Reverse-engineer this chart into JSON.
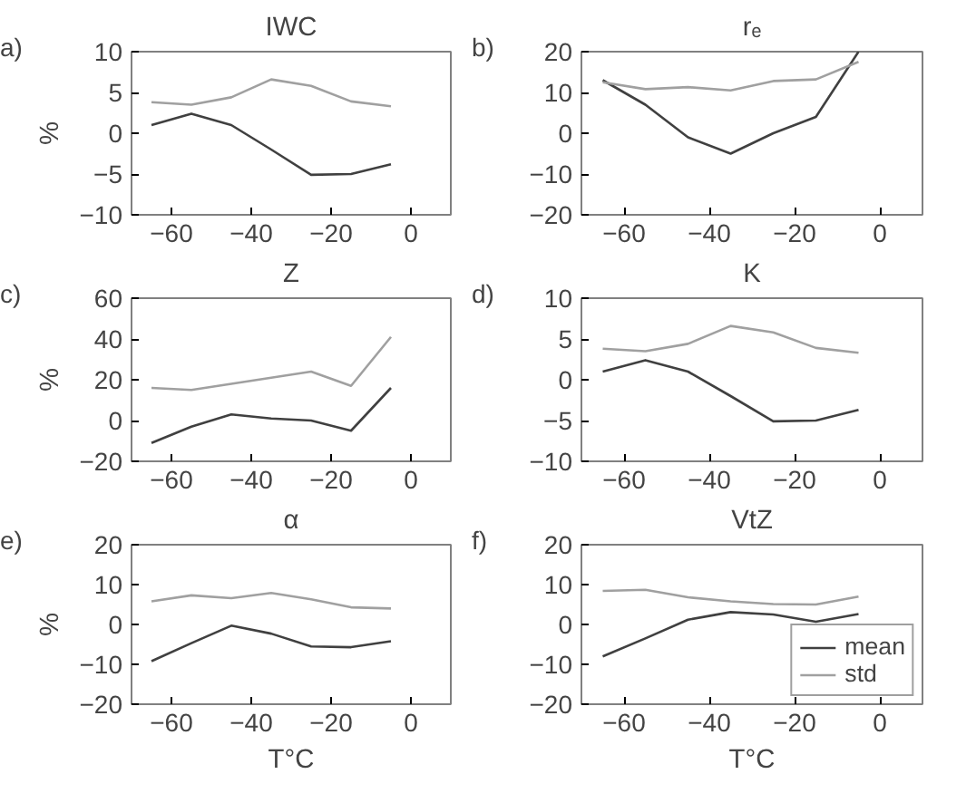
{
  "chart_data": [
    {
      "type": "line",
      "title": "IWC",
      "ylabel": "%",
      "annotations": [
        "a)"
      ],
      "x": [
        -65,
        -55,
        -45,
        -35,
        -25,
        -15,
        -5
      ],
      "xlim": [
        -70,
        10
      ],
      "xticks": [
        -60,
        -40,
        -20,
        0
      ],
      "ylim": [
        -10,
        10
      ],
      "yticks": [
        -10,
        -5,
        0,
        5,
        10
      ],
      "series": [
        {
          "color": "#404040",
          "values": [
            1,
            2.4,
            1,
            -2,
            -5.1,
            -5,
            -3.8
          ]
        },
        {
          "color": "#a0a0a0",
          "values": [
            3.8,
            3.5,
            4.4,
            6.6,
            5.8,
            3.9,
            3.3
          ]
        }
      ]
    },
    {
      "type": "line",
      "title": "rₑ",
      "annotations": [
        "b)"
      ],
      "x": [
        -65,
        -55,
        -45,
        -35,
        -25,
        -15,
        -5
      ],
      "xlim": [
        -70,
        10
      ],
      "xticks": [
        -60,
        -40,
        -20,
        0
      ],
      "ylim": [
        -20,
        20
      ],
      "yticks": [
        -20,
        -10,
        0,
        10,
        20
      ],
      "series": [
        {
          "color": "#404040",
          "values": [
            13,
            7,
            -1,
            -5,
            0,
            4,
            20
          ]
        },
        {
          "color": "#a0a0a0",
          "values": [
            12.5,
            10.8,
            11.3,
            10.5,
            12.8,
            13.2,
            17.5
          ]
        }
      ]
    },
    {
      "type": "line",
      "title": "Z",
      "ylabel": "%",
      "annotations": [
        "c)"
      ],
      "x": [
        -65,
        -55,
        -45,
        -35,
        -25,
        -15,
        -5
      ],
      "xlim": [
        -70,
        10
      ],
      "xticks": [
        -60,
        -40,
        -20,
        0
      ],
      "ylim": [
        -20,
        60
      ],
      "yticks": [
        -20,
        0,
        20,
        40,
        60
      ],
      "series": [
        {
          "color": "#404040",
          "values": [
            -11,
            -3,
            3,
            1,
            0,
            -5,
            16
          ]
        },
        {
          "color": "#a0a0a0",
          "values": [
            16,
            15,
            18,
            21,
            24,
            17,
            41
          ]
        }
      ]
    },
    {
      "type": "line",
      "title": "K",
      "annotations": [
        "d)"
      ],
      "x": [
        -65,
        -55,
        -45,
        -35,
        -25,
        -15,
        -5
      ],
      "xlim": [
        -70,
        10
      ],
      "xticks": [
        -60,
        -40,
        -20,
        0
      ],
      "ylim": [
        -10,
        10
      ],
      "yticks": [
        -10,
        -5,
        0,
        5,
        10
      ],
      "series": [
        {
          "color": "#404040",
          "values": [
            1,
            2.4,
            1,
            -2,
            -5.1,
            -5,
            -3.7
          ]
        },
        {
          "color": "#a0a0a0",
          "values": [
            3.8,
            3.5,
            4.4,
            6.6,
            5.8,
            3.9,
            3.3
          ]
        }
      ]
    },
    {
      "type": "line",
      "title": "α",
      "ylabel": "%",
      "xlabel": "T°C",
      "annotations": [
        "e)"
      ],
      "x": [
        -65,
        -55,
        -45,
        -35,
        -25,
        -15,
        -5
      ],
      "xlim": [
        -70,
        10
      ],
      "xticks": [
        -60,
        -40,
        -20,
        0
      ],
      "ylim": [
        -20,
        20
      ],
      "yticks": [
        -20,
        -10,
        0,
        10,
        20
      ],
      "series": [
        {
          "color": "#404040",
          "values": [
            -9.2,
            -4.7,
            -0.3,
            -2.3,
            -5.5,
            -5.7,
            -4.2
          ]
        },
        {
          "color": "#a0a0a0",
          "values": [
            5.8,
            7.3,
            6.6,
            7.9,
            6.3,
            4.3,
            4.0
          ]
        }
      ]
    },
    {
      "type": "line",
      "title": "VtZ",
      "xlabel": "T°C",
      "annotations": [
        "f)"
      ],
      "x": [
        -65,
        -55,
        -45,
        -35,
        -25,
        -15,
        -5
      ],
      "xlim": [
        -70,
        10
      ],
      "xticks": [
        -60,
        -40,
        -20,
        0
      ],
      "ylim": [
        -20,
        20
      ],
      "yticks": [
        -20,
        -10,
        0,
        10,
        20
      ],
      "legend": "bottom right",
      "series": [
        {
          "name": "mean",
          "color": "#404040",
          "values": [
            -8,
            -3.5,
            1.2,
            3.1,
            2.5,
            0.7,
            2.6
          ]
        },
        {
          "name": "std",
          "color": "#a0a0a0",
          "values": [
            8.4,
            8.7,
            6.8,
            5.8,
            5.1,
            5.0,
            7.0
          ]
        }
      ]
    }
  ]
}
